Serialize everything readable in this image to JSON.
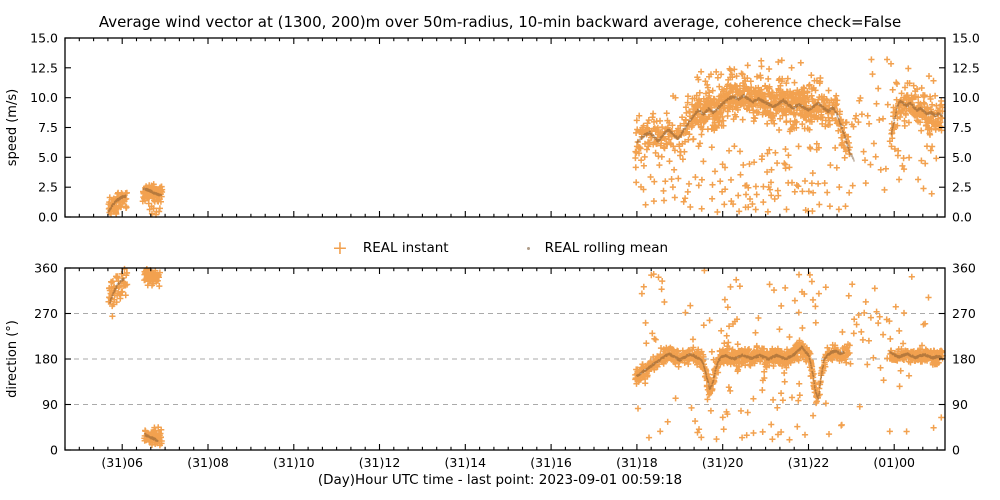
{
  "title": "Average wind vector at (1300, 200)m over 50m-radius, 10-min backward average, coherence check=False",
  "xlabel": "(Day)Hour UTC time - last point: 2023-09-01 00:59:18",
  "legend": {
    "instant_label": "REAL instant",
    "mean_label": "REAL rolling mean"
  },
  "colors": {
    "instant": "#f2a14f",
    "mean": "#6e4b27",
    "mean_alpha": 0.45,
    "grid": "#aaaaaa",
    "axis": "#000000",
    "background": "#ffffff"
  },
  "time_axis": {
    "start_min": 280,
    "end_min": 1511,
    "minor_step_min": 20,
    "major_ticks": [
      {
        "t": 360,
        "label": "(31)06"
      },
      {
        "t": 480,
        "label": "(31)08"
      },
      {
        "t": 600,
        "label": "(31)10"
      },
      {
        "t": 720,
        "label": "(31)12"
      },
      {
        "t": 840,
        "label": "(31)14"
      },
      {
        "t": 960,
        "label": "(31)16"
      },
      {
        "t": 1080,
        "label": "(31)18"
      },
      {
        "t": 1200,
        "label": "(31)20"
      },
      {
        "t": 1320,
        "label": "(31)22"
      },
      {
        "t": 1440,
        "label": "(01)00"
      }
    ]
  },
  "chart_data": [
    {
      "type": "scatter",
      "name": "speed",
      "ylabel": "speed (m/s)",
      "ylim": [
        0,
        15
      ],
      "yticks": [
        {
          "v": 0,
          "label": "0.0"
        },
        {
          "v": 2.5,
          "label": "2.5"
        },
        {
          "v": 5,
          "label": "5.0"
        },
        {
          "v": 7.5,
          "label": "7.5"
        },
        {
          "v": 10,
          "label": "10.0"
        },
        {
          "v": 12.5,
          "label": "12.5"
        },
        {
          "v": 15,
          "label": "15.0"
        }
      ],
      "grid_values": [],
      "series": [
        {
          "name": "REAL instant",
          "marker": "plus",
          "dense_windows": [
            {
              "t0": 1160,
              "t1": 1332,
              "mult": 1.75
            }
          ],
          "segments": [
            {
              "seed": 11,
              "t0": 341,
              "t1": 353,
              "dt": 0.45,
              "per": 1.3,
              "center": 0.9,
              "sigma": 0.5,
              "min": 0.25,
              "max": 1.9
            },
            {
              "seed": 12,
              "t0": 353,
              "t1": 367,
              "dt": 0.5,
              "per": 1.2,
              "center": 1.6,
              "sigma": 0.55,
              "min": 0.5,
              "max": 2.6
            },
            {
              "seed": 13,
              "t0": 389,
              "t1": 416,
              "dt": 0.45,
              "per": 1.4,
              "center": 2.0,
              "sigma": 0.42,
              "min": 1.0,
              "max": 2.75
            },
            {
              "seed": 14,
              "t0": 399,
              "t1": 414,
              "dt": 1.6,
              "per": 1.0,
              "center": 0.8,
              "sigma": 0.5,
              "min": 0.2,
              "max": 1.5
            },
            {
              "seed": 15,
              "t0": 1078,
              "t1": 1378,
              "dt": 0.7,
              "per": 1.6,
              "mean": true,
              "sigma": 1.05,
              "min": 0.3,
              "max": 13.8,
              "outLoP": 0.13,
              "outLo": [
                0.4,
                6.2
              ],
              "outHiP": 0.05,
              "outHiAdd": [
                1.6,
                3.6
              ]
            },
            {
              "seed": 16,
              "t0": 1378,
              "t1": 1436,
              "dt": 1.9,
              "per": 1.0,
              "center": 7.0,
              "sigma": 3.4,
              "min": 0.5,
              "max": 13.2
            },
            {
              "seed": 17,
              "t0": 1436,
              "t1": 1508,
              "dt": 0.65,
              "per": 1.8,
              "mean": true,
              "sigma": 0.95,
              "min": 0.4,
              "max": 13.8,
              "outLoP": 0.1,
              "outLo": [
                0.5,
                6.0
              ],
              "outHiP": 0.04,
              "outHiAdd": [
                1.4,
                3.2
              ]
            }
          ]
        },
        {
          "name": "REAL rolling mean",
          "marker": "dot",
          "dot_step": 0.42,
          "dot_jitter": 0.1,
          "mean_path": [
            [
              [
                341,
                0.5
              ],
              [
                345,
                0.85
              ],
              [
                349,
                1.15
              ],
              [
                353,
                1.4
              ],
              [
                357,
                1.55
              ],
              [
                361,
                1.7
              ],
              [
                365,
                1.75
              ]
            ],
            [
              [
                390,
                2.4
              ],
              [
                395,
                2.3
              ],
              [
                400,
                2.15
              ],
              [
                405,
                2.0
              ],
              [
                410,
                1.9
              ],
              [
                415,
                1.85
              ]
            ],
            [
              [
                1080,
                6.2
              ],
              [
                1086,
                6.6
              ],
              [
                1092,
                6.9
              ],
              [
                1098,
                7.1
              ],
              [
                1104,
                6.7
              ],
              [
                1110,
                6.35
              ],
              [
                1117,
                6.9
              ],
              [
                1124,
                7.35
              ],
              [
                1131,
                6.9
              ],
              [
                1138,
                6.55
              ],
              [
                1145,
                7.2
              ],
              [
                1152,
                7.85
              ],
              [
                1159,
                8.45
              ],
              [
                1166,
                9.0
              ],
              [
                1173,
                8.6
              ],
              [
                1180,
                9.05
              ],
              [
                1187,
                8.75
              ],
              [
                1194,
                9.15
              ],
              [
                1201,
                9.55
              ],
              [
                1208,
                9.9
              ],
              [
                1215,
                10.1
              ],
              [
                1222,
                9.85
              ],
              [
                1229,
                10.15
              ],
              [
                1236,
                9.9
              ],
              [
                1243,
                9.65
              ],
              [
                1250,
                9.9
              ],
              [
                1257,
                9.7
              ],
              [
                1264,
                9.45
              ],
              [
                1271,
                9.2
              ],
              [
                1278,
                9.5
              ],
              [
                1285,
                9.8
              ],
              [
                1292,
                9.4
              ],
              [
                1299,
                9.1
              ],
              [
                1306,
                9.45
              ],
              [
                1313,
                9.2
              ],
              [
                1320,
                8.95
              ],
              [
                1327,
                9.25
              ],
              [
                1334,
                9.5
              ],
              [
                1341,
                9.15
              ],
              [
                1348,
                8.85
              ],
              [
                1354,
                9.2
              ],
              [
                1360,
                8.6
              ],
              [
                1366,
                7.6
              ],
              [
                1372,
                6.5
              ],
              [
                1378,
                5.4
              ],
              [
                1384,
                4.7
              ]
            ],
            [
              [
                1436,
                7.0
              ],
              [
                1440,
                8.1
              ],
              [
                1444,
                9.2
              ],
              [
                1448,
                9.75
              ],
              [
                1452,
                9.55
              ],
              [
                1457,
                9.3
              ],
              [
                1462,
                9.55
              ],
              [
                1467,
                9.25
              ],
              [
                1472,
                8.95
              ],
              [
                1477,
                9.1
              ],
              [
                1482,
                8.8
              ],
              [
                1487,
                8.6
              ],
              [
                1492,
                8.75
              ],
              [
                1497,
                8.5
              ],
              [
                1502,
                8.65
              ],
              [
                1507,
                8.5
              ]
            ]
          ]
        }
      ]
    },
    {
      "type": "scatter",
      "name": "direction",
      "ylabel": "direction (°)",
      "ylim": [
        0,
        360
      ],
      "yticks": [
        {
          "v": 0,
          "label": "0"
        },
        {
          "v": 90,
          "label": "90"
        },
        {
          "v": 180,
          "label": "180"
        },
        {
          "v": 270,
          "label": "270"
        },
        {
          "v": 360,
          "label": "360"
        }
      ],
      "grid_values": [
        90,
        180,
        270
      ],
      "series": [
        {
          "name": "REAL instant",
          "marker": "plus",
          "dense_windows": [
            {
              "t0": 1160,
              "t1": 1332,
              "mult": 1.75
            }
          ],
          "segments": [
            {
              "seed": 21,
              "t0": 341,
              "t1": 353,
              "dt": 0.55,
              "per": 1.2,
              "center": 312,
              "sigma": 30,
              "min": 183,
              "max": 358
            },
            {
              "seed": 22,
              "t0": 353,
              "t1": 367,
              "dt": 0.6,
              "per": 1.1,
              "center": 332,
              "sigma": 20,
              "min": 262,
              "max": 358
            },
            {
              "seed": 23,
              "t0": 391,
              "t1": 413,
              "dt": 0.55,
              "per": 1.2,
              "center": 344,
              "sigma": 10,
              "min": 320,
              "max": 359
            },
            {
              "seed": 24,
              "t0": 391,
              "t1": 416,
              "dt": 0.5,
              "per": 1.2,
              "center": 26,
              "sigma": 11,
              "min": 5,
              "max": 48
            },
            {
              "seed": 25,
              "t0": 1078,
              "t1": 1378,
              "dt": 0.7,
              "per": 1.6,
              "mean": true,
              "sigma": 10,
              "min": 4,
              "max": 357,
              "outP": 0.12,
              "outRange": [
                15,
                356
              ]
            },
            {
              "seed": 26,
              "t0": 1378,
              "t1": 1434,
              "dt": 2.3,
              "per": 1.0,
              "center": 200,
              "sigma": 75,
              "min": 8,
              "max": 355
            },
            {
              "seed": 27,
              "t0": 1434,
              "t1": 1508,
              "dt": 0.65,
              "per": 1.8,
              "mean": true,
              "sigma": 8.5,
              "min": 5,
              "max": 357,
              "outP": 0.07,
              "outRange": [
                30,
                350
              ]
            }
          ]
        },
        {
          "name": "REAL rolling mean",
          "marker": "dot",
          "dot_step": 0.42,
          "dot_jitter": 2.2,
          "mean_path": [
            [
              [
                343,
                293
              ],
              [
                348,
                312
              ],
              [
                353,
                326
              ],
              [
                358,
                334
              ],
              [
                363,
                339
              ]
            ],
            [
              [
                392,
                30
              ],
              [
                398,
                26
              ],
              [
                404,
                22
              ],
              [
                410,
                19
              ]
            ],
            [
              [
                1080,
                147
              ],
              [
                1085,
                151
              ],
              [
                1090,
                156
              ],
              [
                1095,
                161
              ],
              [
                1100,
                166
              ],
              [
                1105,
                171
              ],
              [
                1110,
                176
              ],
              [
                1115,
                181
              ],
              [
                1120,
                186
              ],
              [
                1125,
                190
              ],
              [
                1130,
                186
              ],
              [
                1135,
                182
              ],
              [
                1140,
                178
              ],
              [
                1145,
                182
              ],
              [
                1150,
                186
              ],
              [
                1155,
                190
              ],
              [
                1160,
                186
              ],
              [
                1165,
                182
              ],
              [
                1170,
                179
              ],
              [
                1174,
                166
              ],
              [
                1178,
                143
              ],
              [
                1182,
                120
              ],
              [
                1186,
                132
              ],
              [
                1190,
                158
              ],
              [
                1194,
                176
              ],
              [
                1198,
                184
              ],
              [
                1204,
                187
              ],
              [
                1210,
                183
              ],
              [
                1216,
                180
              ],
              [
                1222,
                184
              ],
              [
                1228,
                188
              ],
              [
                1234,
                184
              ],
              [
                1240,
                181
              ],
              [
                1246,
                184
              ],
              [
                1252,
                187
              ],
              [
                1258,
                183
              ],
              [
                1264,
                180
              ],
              [
                1270,
                184
              ],
              [
                1276,
                187
              ],
              [
                1282,
                183
              ],
              [
                1288,
                180
              ],
              [
                1294,
                184
              ],
              [
                1300,
                189
              ],
              [
                1306,
                197
              ],
              [
                1311,
                204
              ],
              [
                1316,
                194
              ],
              [
                1321,
                186
              ],
              [
                1326,
                152
              ],
              [
                1330,
                116
              ],
              [
                1334,
                102
              ],
              [
                1338,
                146
              ],
              [
                1342,
                178
              ],
              [
                1347,
                188
              ],
              [
                1352,
                193
              ],
              [
                1358,
                196
              ],
              [
                1364,
                191
              ],
              [
                1370,
                193
              ]
            ],
            [
              [
                1434,
                193
              ],
              [
                1440,
                188
              ],
              [
                1446,
                184
              ],
              [
                1452,
                187
              ],
              [
                1458,
                190
              ],
              [
                1464,
                186
              ],
              [
                1470,
                183
              ],
              [
                1476,
                186
              ],
              [
                1482,
                189
              ],
              [
                1488,
                185
              ],
              [
                1494,
                182
              ],
              [
                1500,
                185
              ],
              [
                1506,
                184
              ]
            ]
          ]
        }
      ]
    }
  ]
}
